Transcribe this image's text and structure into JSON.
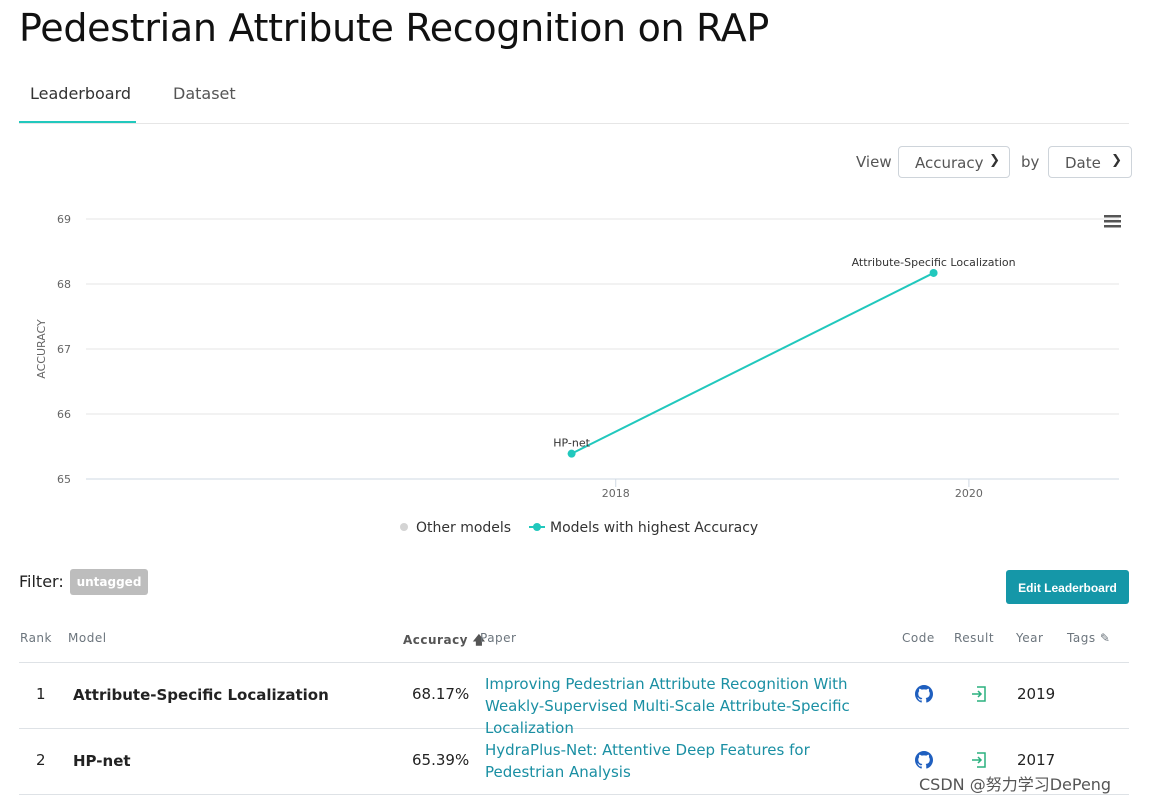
{
  "page": {
    "title": "Pedestrian Attribute Recognition on RAP"
  },
  "tabs": [
    {
      "label": "Leaderboard",
      "active": true
    },
    {
      "label": "Dataset",
      "active": false
    }
  ],
  "view": {
    "view_label": "View",
    "metric": "Accuracy",
    "by_label": "by",
    "axis": "Date"
  },
  "chart_data": {
    "type": "line",
    "ylabel": "ACCURACY",
    "ylim": [
      65,
      69
    ],
    "yticks": [
      "65",
      "66",
      "67",
      "68",
      "69"
    ],
    "xticks": [
      "2018",
      "2020"
    ],
    "xlim": [
      2015.0,
      2020.85
    ],
    "grid": true,
    "legend_placement": "bottom-center",
    "series": [
      {
        "name": "Other models",
        "color": "#d4d4d4",
        "points": []
      },
      {
        "name": "Models with highest Accuracy",
        "color": "#21c8bd",
        "points": [
          {
            "x": 2017.75,
            "y": 65.39,
            "label": "HP-net"
          },
          {
            "x": 2019.8,
            "y": 68.17,
            "label": "Attribute-Specific Localization"
          }
        ]
      }
    ],
    "menu_icon": "hamburger-icon"
  },
  "filter": {
    "label": "Filter:",
    "badge": "untagged"
  },
  "actions": {
    "edit_label": "Edit Leaderboard"
  },
  "table": {
    "headers": {
      "rank": "Rank",
      "model": "Model",
      "accuracy": "Accuracy",
      "paper": "Paper",
      "code": "Code",
      "result": "Result",
      "year": "Year",
      "tags": "Tags"
    },
    "rows": [
      {
        "rank": "1",
        "model": "Attribute-Specific Localization",
        "accuracy": "68.17%",
        "paper": "Improving Pedestrian Attribute Recognition With Weakly-Supervised Multi-Scale Attribute-Specific Localization",
        "year": "2019"
      },
      {
        "rank": "2",
        "model": "HP-net",
        "accuracy": "65.39%",
        "paper": "HydraPlus-Net: Attentive Deep Features for Pedestrian Analysis",
        "year": "2017"
      }
    ]
  },
  "watermark": "CSDN @努力学习DePeng",
  "colors": {
    "accent": "#21c8bd",
    "link": "#1a8fa3",
    "button": "#1597a8",
    "github_icon": "#1f5fbf",
    "result_icon": "#2ab07f"
  }
}
